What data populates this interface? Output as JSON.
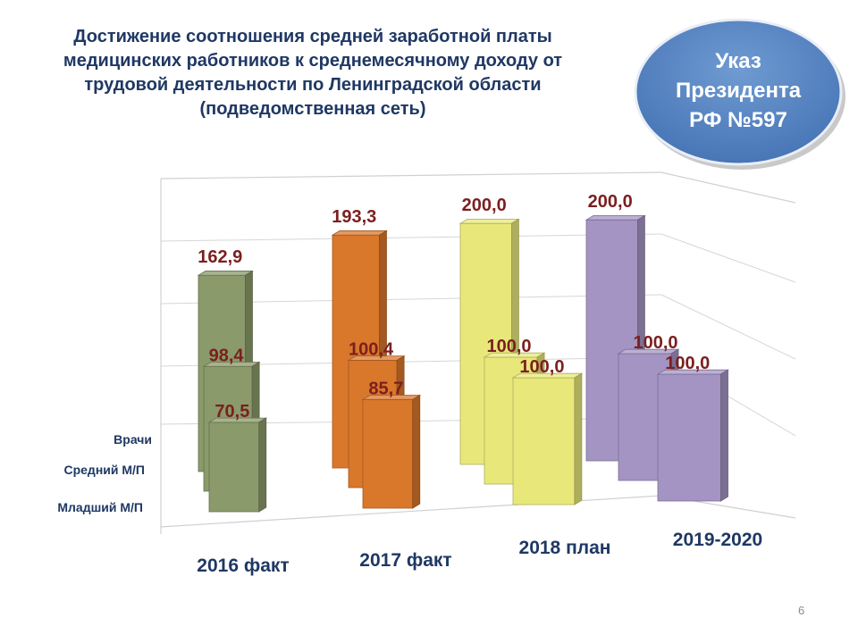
{
  "title": {
    "line1": "Достижение соотношения средней заработной платы",
    "line2": "медицинских работников к среднемесячному доходу от",
    "line3": "трудовой деятельности по Ленинградской области",
    "line4": "(подведомственная сеть)"
  },
  "badge": {
    "line1": "Указ",
    "line2": "Президента",
    "line3": "РФ №597",
    "color": "#4f81bd"
  },
  "page_number": "6",
  "chart_data": {
    "type": "bar",
    "categories": [
      "2016 факт",
      "2017 факт",
      "2018 план",
      "2019-2020"
    ],
    "series": [
      {
        "name": "Врачи",
        "values": [
          162.9,
          193.3,
          200.0,
          200.0
        ],
        "labels": [
          "162,9",
          "193,3",
          "200,0",
          "200,0"
        ]
      },
      {
        "name": "Средний М/П",
        "values": [
          98.4,
          100.4,
          100.0,
          100.0
        ],
        "labels": [
          "98,4",
          "100,4",
          "100,0",
          "100,0"
        ]
      },
      {
        "name": "Младший М/П",
        "values": [
          70.5,
          85.7,
          100.0,
          100.0
        ],
        "labels": [
          "70,5",
          "85,7",
          "100,0",
          "100,0"
        ]
      }
    ],
    "colors": [
      "#8a9a6a",
      "#d9772b",
      "#e8e87a",
      "#a494c4"
    ],
    "label_color": "#7b1f1f",
    "ylim": [
      0,
      200
    ],
    "grid": true
  }
}
